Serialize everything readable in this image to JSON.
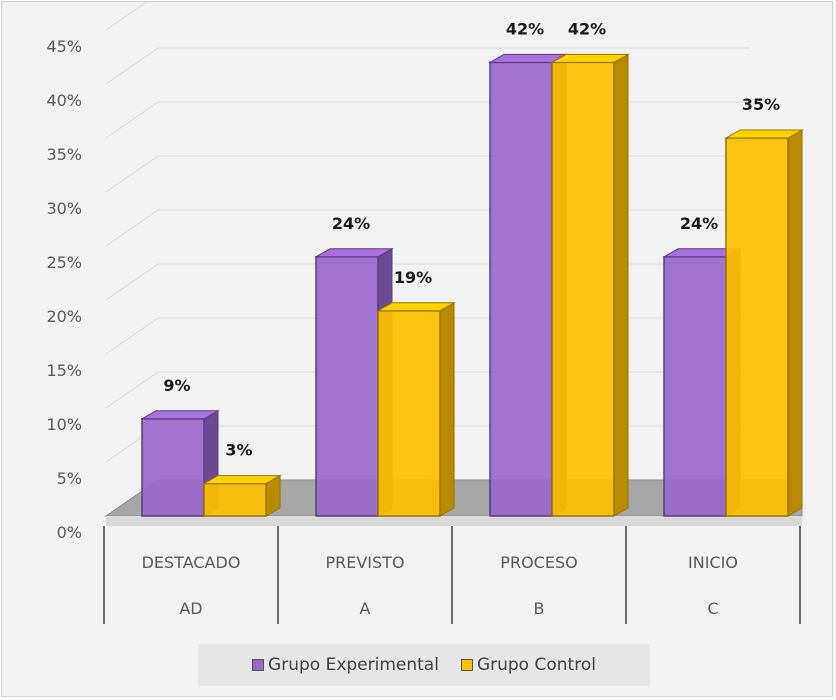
{
  "chart_data": {
    "type": "bar",
    "categories": [
      "DESTACADO",
      "PREVISTO",
      "PROCESO",
      "INICIO"
    ],
    "subcategories": [
      "AD",
      "A",
      "B",
      "C"
    ],
    "series": [
      {
        "name": "Grupo Experimental",
        "values": [
          9,
          24,
          42,
          24
        ],
        "labels": [
          "9%",
          "24%",
          "42%",
          "24%"
        ],
        "color": "#9966cc"
      },
      {
        "name": "Grupo Control",
        "values": [
          3,
          19,
          42,
          35
        ],
        "labels": [
          "3%",
          "19%",
          "42%",
          "35%"
        ],
        "color": "#ffc000"
      }
    ],
    "yticks": [
      "0%",
      "5%",
      "10%",
      "15%",
      "20%",
      "25%",
      "30%",
      "35%",
      "40%",
      "45%"
    ],
    "ylim": [
      0,
      45
    ],
    "ystep": 5,
    "grid": true,
    "legend_position": "bottom",
    "style": "3d-clustered-column"
  }
}
